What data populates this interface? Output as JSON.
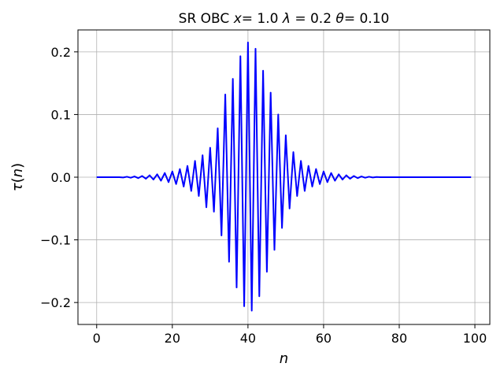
{
  "chart_data": {
    "type": "line",
    "title": "SR OBC x= 1.0 λ = 0.2 θ= 0.10",
    "title_parts": [
      {
        "t": "SR OBC ",
        "i": false
      },
      {
        "t": "x",
        "i": true
      },
      {
        "t": "= 1.0 ",
        "i": false
      },
      {
        "t": "λ",
        "i": true
      },
      {
        "t": " = 0.2 ",
        "i": false
      },
      {
        "t": "θ",
        "i": true
      },
      {
        "t": "= 0.10",
        "i": false
      }
    ],
    "xlabel": "n",
    "ylabel": "τ(n)",
    "ylabel_parts": [
      {
        "t": "τ",
        "i": true
      },
      {
        "t": "(",
        "i": false
      },
      {
        "t": "n",
        "i": true
      },
      {
        "t": ")",
        "i": false
      }
    ],
    "xlim": [
      -4.95,
      103.95
    ],
    "ylim": [
      -0.235,
      0.235
    ],
    "xticks": [
      0,
      20,
      40,
      60,
      80,
      100
    ],
    "xtick_labels": [
      "0",
      "20",
      "40",
      "60",
      "80",
      "100"
    ],
    "yticks": [
      -0.2,
      -0.1,
      0.0,
      0.1,
      0.2
    ],
    "ytick_labels": [
      "−0.2",
      "−0.1",
      "0.0",
      "0.1",
      "0.2"
    ],
    "grid": true,
    "series_color": "#0000ff",
    "series": [
      {
        "x": [
          0,
          1,
          2,
          3,
          4,
          5,
          6,
          7,
          8,
          9,
          10,
          11,
          12,
          13,
          14,
          15,
          16,
          17,
          18,
          19,
          20,
          21,
          22,
          23,
          24,
          25,
          26,
          27,
          28,
          29,
          30,
          31,
          32,
          33,
          34,
          35,
          36,
          37,
          38,
          39,
          40,
          41,
          42,
          43,
          44,
          45,
          46,
          47,
          48,
          49,
          50,
          51,
          52,
          53,
          54,
          55,
          56,
          57,
          58,
          59,
          60,
          61,
          62,
          63,
          64,
          65,
          66,
          67,
          68,
          69,
          70,
          71,
          72,
          73,
          74,
          75,
          76,
          77,
          78,
          79,
          80,
          81,
          82,
          83,
          84,
          85,
          86,
          87,
          88,
          89,
          90,
          91,
          92,
          93,
          94,
          95,
          96,
          97,
          98,
          99
        ],
        "y": [
          0.0,
          0.0,
          0.0,
          0.0,
          0.0,
          0.0,
          0.0,
          -0.0005,
          0.0007,
          -0.0009,
          0.0012,
          -0.0015,
          0.0019,
          -0.0025,
          0.003,
          -0.0038,
          0.0046,
          -0.0056,
          0.0067,
          -0.0079,
          0.0092,
          -0.011,
          0.013,
          -0.015,
          0.018,
          -0.022,
          0.026,
          -0.03,
          0.035,
          -0.048,
          0.047,
          -0.055,
          0.078,
          -0.093,
          0.132,
          -0.135,
          0.157,
          -0.176,
          0.193,
          -0.206,
          0.215,
          -0.213,
          0.205,
          -0.19,
          0.17,
          -0.151,
          0.135,
          -0.116,
          0.1,
          -0.081,
          0.067,
          -0.05,
          0.04,
          -0.03,
          0.026,
          -0.022,
          0.018,
          -0.015,
          0.013,
          -0.011,
          0.0092,
          -0.0079,
          0.0067,
          -0.0056,
          0.0046,
          -0.0038,
          0.003,
          -0.0025,
          0.0019,
          -0.0015,
          0.0012,
          -0.0009,
          0.0007,
          -0.0005,
          0.0003,
          0.0,
          0.0,
          0.0,
          0.0,
          0.0,
          0.0,
          0.0,
          0.0,
          0.0,
          0.0,
          0.0,
          0.0,
          0.0,
          0.0,
          0.0,
          0.0,
          0.0,
          0.0,
          0.0,
          0.0,
          0.0,
          0.0,
          0.0,
          0.0,
          0.0
        ]
      }
    ]
  }
}
